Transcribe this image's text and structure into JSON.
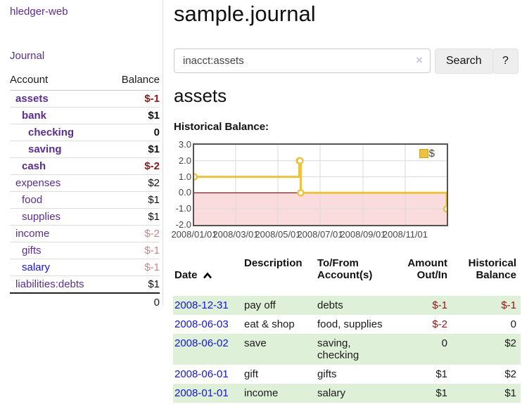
{
  "sidebar": {
    "brand": "hledger-web",
    "nav": {
      "journal": "Journal"
    },
    "table": {
      "account_header": "Account",
      "balance_header": "Balance",
      "total": "0"
    },
    "accounts": [
      {
        "name": "assets",
        "balance": "$-1",
        "level": 1,
        "bold": true,
        "negative": true
      },
      {
        "name": "bank",
        "balance": "$1",
        "level": 2,
        "bold": true,
        "negative": false
      },
      {
        "name": "checking",
        "balance": "0",
        "level": 3,
        "bold": true,
        "negative": false
      },
      {
        "name": "saving",
        "balance": "$1",
        "level": 3,
        "bold": true,
        "negative": false
      },
      {
        "name": "cash",
        "balance": "$-2",
        "level": 2,
        "bold": true,
        "negative": true
      },
      {
        "name": "expenses",
        "balance": "$2",
        "level": 1,
        "bold": false,
        "negative": false
      },
      {
        "name": "food",
        "balance": "$1",
        "level": 2,
        "bold": false,
        "negative": false
      },
      {
        "name": "supplies",
        "balance": "$1",
        "level": 2,
        "bold": false,
        "negative": false
      },
      {
        "name": "income",
        "balance": "$-2",
        "level": 1,
        "bold": false,
        "negative": true
      },
      {
        "name": "gifts",
        "balance": "$-1",
        "level": 2,
        "bold": false,
        "negative": true
      },
      {
        "name": "salary",
        "balance": "$-1",
        "level": 2,
        "bold": false,
        "negative": true,
        "unvisited": true
      },
      {
        "name": "liabilities:debts",
        "balance": "$1",
        "level": 1,
        "bold": false,
        "negative": false
      }
    ]
  },
  "main": {
    "title": "sample.journal",
    "search": {
      "value": "inacct:assets",
      "clear_icon": "×",
      "search_button": "Search",
      "help_button": "?"
    },
    "account_heading": "assets",
    "section_label": "Historical Balance:"
  },
  "chart_data": {
    "type": "line",
    "step": true,
    "title": "Historical Balance",
    "series": [
      {
        "name": "$",
        "color": "#edc240",
        "points": [
          [
            "2008-01-01",
            1
          ],
          [
            "2008-06-01",
            2
          ],
          [
            "2008-06-02",
            2
          ],
          [
            "2008-06-03",
            0
          ],
          [
            "2008-12-31",
            -1
          ]
        ]
      }
    ],
    "x_range": [
      "2008-01-01",
      "2008-12-31"
    ],
    "ylim": [
      -2,
      3
    ],
    "yticks": [
      3.0,
      2.0,
      1.0,
      0.0,
      -1.0,
      -2.0
    ],
    "xticks": [
      {
        "date": "2008-01-01",
        "label": "2008/01/01"
      },
      {
        "date": "2008-03-01",
        "label": "2008/03/01"
      },
      {
        "date": "2008-05-01",
        "label": "2008/05/01"
      },
      {
        "date": "2008-07-01",
        "label": "2008/07/01"
      },
      {
        "date": "2008-09-01",
        "label": "2008/09/01"
      },
      {
        "date": "2008-11-01",
        "label": "2008/11/01"
      }
    ],
    "legend": {
      "label": "$",
      "position": "top-right"
    },
    "grid": true,
    "grid_color": "#d9d9d9",
    "negative_region_color": "#fbdcdc",
    "zero_line_color": "#8b1a1a",
    "marker": {
      "fill": "#ffffff",
      "radius": 4
    }
  },
  "register": {
    "columns": [
      {
        "label": "Date",
        "sort": "asc"
      },
      {
        "label": "Description"
      },
      {
        "label": "To/From\nAccount(s)"
      },
      {
        "label": "Amount\nOut/In",
        "align": "right"
      },
      {
        "label": "Historical\nBalance",
        "align": "right"
      }
    ],
    "rows": [
      {
        "date": "2008-12-31",
        "description": "pay off",
        "accounts": "debts",
        "amount": "$-1",
        "amount_negative": true,
        "balance": "$-1",
        "balance_negative": true
      },
      {
        "date": "2008-06-03",
        "description": "eat & shop",
        "accounts": "food, supplies",
        "amount": "$-2",
        "amount_negative": true,
        "balance": "0",
        "balance_negative": false
      },
      {
        "date": "2008-06-02",
        "description": "save",
        "accounts": "saving, checking",
        "amount": "0",
        "amount_negative": false,
        "balance": "$2",
        "balance_negative": false
      },
      {
        "date": "2008-06-01",
        "description": "gift",
        "accounts": "gifts",
        "amount": "$1",
        "amount_negative": false,
        "balance": "$2",
        "balance_negative": false
      },
      {
        "date": "2008-01-01",
        "description": "income",
        "accounts": "salary",
        "amount": "$1",
        "amount_negative": false,
        "balance": "$1",
        "balance_negative": false
      }
    ]
  },
  "colors": {
    "link_purple": "#5c2d91",
    "link_blue": "#1414dd",
    "negative_dark": "#911616",
    "negative_dim": "#c98585",
    "stripe_green": "#dff0d8",
    "series_yellow": "#edc240"
  }
}
